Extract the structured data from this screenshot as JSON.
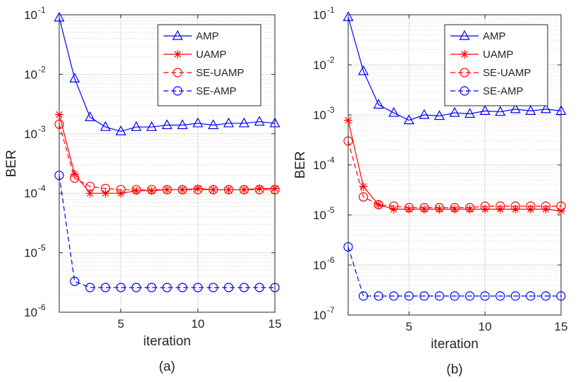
{
  "chart_data": [
    {
      "type": "line",
      "caption": "(a)",
      "xlabel": "iteration",
      "ylabel": "BER",
      "xlim": [
        1,
        15
      ],
      "ylim": [
        1e-06,
        0.1
      ],
      "yscale": "log",
      "grid": true,
      "legend_position": "top-right",
      "xticks": [
        5,
        10,
        15
      ],
      "yticks": [
        {
          "exp": -6
        },
        {
          "exp": -5
        },
        {
          "exp": -4
        },
        {
          "exp": -3
        },
        {
          "exp": -2
        },
        {
          "exp": -1
        }
      ],
      "x": [
        1,
        2,
        3,
        4,
        5,
        6,
        7,
        8,
        9,
        10,
        11,
        12,
        13,
        14,
        15
      ],
      "series": [
        {
          "name": "AMP",
          "color": "#0000ff",
          "dash": "solid",
          "marker": "triangle",
          "values": [
            0.09,
            0.0085,
            0.0019,
            0.0013,
            0.0011,
            0.0013,
            0.0013,
            0.0014,
            0.0014,
            0.0015,
            0.0014,
            0.0015,
            0.0015,
            0.0016,
            0.0015
          ]
        },
        {
          "name": "UAMP",
          "color": "#ff0000",
          "dash": "solid",
          "marker": "asterisk",
          "values": [
            0.0021,
            0.00021,
            0.0001,
            0.0001,
            0.0001,
            0.00011,
            0.00011,
            0.000115,
            0.000115,
            0.00012,
            0.000115,
            0.000115,
            0.000115,
            0.00012,
            0.00012
          ]
        },
        {
          "name": "SE-UAMP",
          "color": "#ff0000",
          "dash": "dashed",
          "marker": "circle",
          "values": [
            0.00145,
            0.00018,
            0.00013,
            0.00012,
            0.000115,
            0.000115,
            0.000115,
            0.000115,
            0.000115,
            0.000115,
            0.000115,
            0.000115,
            0.000115,
            0.000115,
            0.000115
          ]
        },
        {
          "name": "SE-AMP",
          "color": "#0000ff",
          "dash": "dashed",
          "marker": "circle",
          "values": [
            0.0002,
            3.3e-06,
            2.6e-06,
            2.6e-06,
            2.6e-06,
            2.6e-06,
            2.6e-06,
            2.6e-06,
            2.6e-06,
            2.6e-06,
            2.6e-06,
            2.6e-06,
            2.6e-06,
            2.6e-06,
            2.6e-06
          ]
        }
      ]
    },
    {
      "type": "line",
      "caption": "(b)",
      "xlabel": "iteration",
      "ylabel": "BER",
      "xlim": [
        1,
        15
      ],
      "ylim": [
        1e-07,
        0.1
      ],
      "yscale": "log",
      "grid": true,
      "legend_position": "top-right",
      "xticks": [
        5,
        10,
        15
      ],
      "yticks": [
        {
          "exp": -7
        },
        {
          "exp": -6
        },
        {
          "exp": -5
        },
        {
          "exp": -4
        },
        {
          "exp": -3
        },
        {
          "exp": -2
        },
        {
          "exp": -1
        }
      ],
      "x": [
        1,
        2,
        3,
        4,
        5,
        6,
        7,
        8,
        9,
        10,
        11,
        12,
        13,
        14,
        15
      ],
      "series": [
        {
          "name": "AMP",
          "color": "#0000ff",
          "dash": "solid",
          "marker": "triangle",
          "values": [
            0.09,
            0.0075,
            0.0016,
            0.0011,
            0.00078,
            0.001,
            0.00095,
            0.0011,
            0.00105,
            0.0012,
            0.00115,
            0.0013,
            0.0012,
            0.0013,
            0.0012
          ]
        },
        {
          "name": "UAMP",
          "color": "#ff0000",
          "dash": "solid",
          "marker": "asterisk",
          "values": [
            0.00078,
            3.7e-05,
            1.6e-05,
            1.3e-05,
            1.3e-05,
            1.3e-05,
            1.3e-05,
            1.3e-05,
            1.3e-05,
            1.3e-05,
            1.3e-05,
            1.3e-05,
            1.3e-05,
            1.3e-05,
            1.2e-05
          ]
        },
        {
          "name": "SE-UAMP",
          "color": "#ff0000",
          "dash": "dashed",
          "marker": "circle",
          "values": [
            0.0003,
            2.3e-05,
            1.6e-05,
            1.5e-05,
            1.4e-05,
            1.4e-05,
            1.4e-05,
            1.4e-05,
            1.4e-05,
            1.5e-05,
            1.5e-05,
            1.5e-05,
            1.5e-05,
            1.5e-05,
            1.5e-05
          ]
        },
        {
          "name": "SE-AMP",
          "color": "#0000ff",
          "dash": "dashed",
          "marker": "circle",
          "values": [
            2.3e-06,
            2.4e-07,
            2.4e-07,
            2.4e-07,
            2.4e-07,
            2.4e-07,
            2.4e-07,
            2.4e-07,
            2.4e-07,
            2.4e-07,
            2.4e-07,
            2.4e-07,
            2.4e-07,
            2.4e-07,
            2.4e-07
          ]
        }
      ]
    }
  ]
}
